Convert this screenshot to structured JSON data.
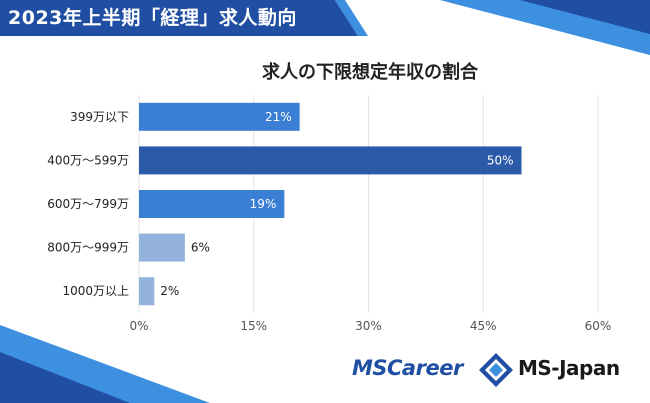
{
  "header": {
    "title": "2023年上半期「経理」求人動向"
  },
  "chart_data": {
    "type": "bar",
    "orientation": "horizontal",
    "title": "求人の下限想定年収の割合",
    "categories": [
      "399万以下",
      "400万～599万",
      "600万～799万",
      "800万～999万",
      "1000万以上"
    ],
    "values": [
      21,
      50,
      19,
      6,
      2
    ],
    "data_labels": [
      "21%",
      "50%",
      "19%",
      "6%",
      "2%"
    ],
    "bar_colors": [
      "#3b7fd4",
      "#2b5aa8",
      "#3b7fd4",
      "#93b3de",
      "#93b3de"
    ],
    "xlim": [
      0,
      60
    ],
    "xticks": [
      0,
      15,
      30,
      45,
      60
    ],
    "xtick_labels": [
      "0%",
      "15%",
      "30%",
      "45%",
      "60%"
    ],
    "grid": true,
    "xlabel": "",
    "ylabel": ""
  },
  "logos": {
    "mscareer": "MSCareer",
    "msjapan": "MS-Japan"
  },
  "colors": {
    "brand_dark": "#1f4ea3",
    "brand_light": "#3d8fe0",
    "grid": "#e3e3e3"
  }
}
